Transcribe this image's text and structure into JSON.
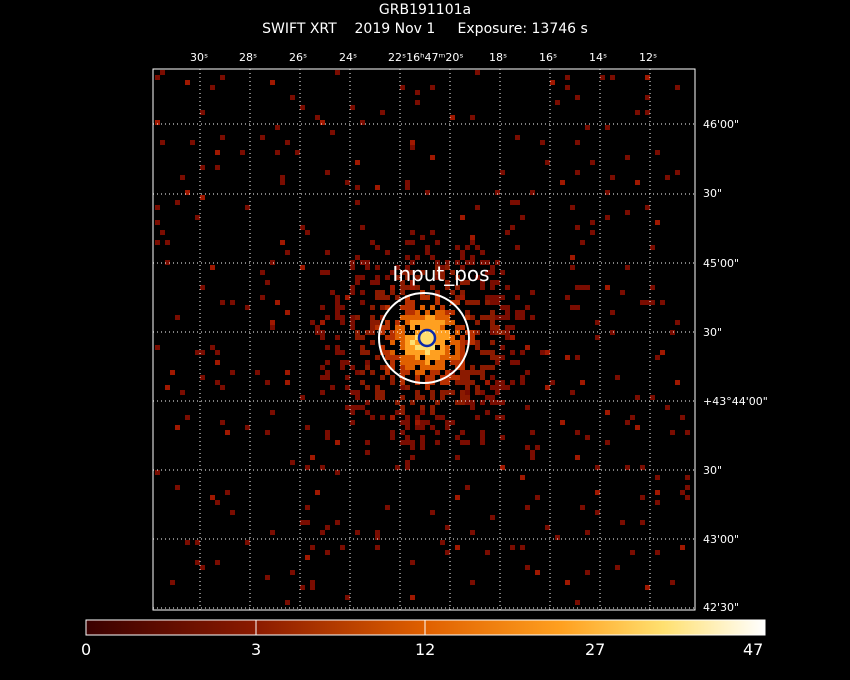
{
  "header": {
    "target": "GRB191101a",
    "instrument": "SWIFT XRT",
    "date": "2019 Nov  1",
    "exposure": "Exposure: 13746 s"
  },
  "ra_ticks": [
    "30ˢ",
    "28ˢ",
    "26ˢ",
    "24ˢ",
    "22ˢ16ʰ47ᵐ20ˢ",
    "18ˢ",
    "16ˢ",
    "14ˢ",
    "12ˢ"
  ],
  "dec_ticks": [
    "46'00\"",
    "30\"",
    "45'00\"",
    "30\"",
    "+43°44'00\"",
    "30\"",
    "43'00\"",
    "42'30\""
  ],
  "source_label": "Input_pos",
  "colorbar": {
    "labels": [
      "0",
      "3",
      "12",
      "27",
      "47"
    ],
    "colors": [
      "#3a0000",
      "#8b1a00",
      "#c84400",
      "#ff8c00",
      "#ffd54a",
      "#ffffff"
    ]
  },
  "colors": {
    "background": "#000000",
    "grid": "#ffffff",
    "source_circle": "#ffffff",
    "input_marker": "#0b2aa8"
  }
}
